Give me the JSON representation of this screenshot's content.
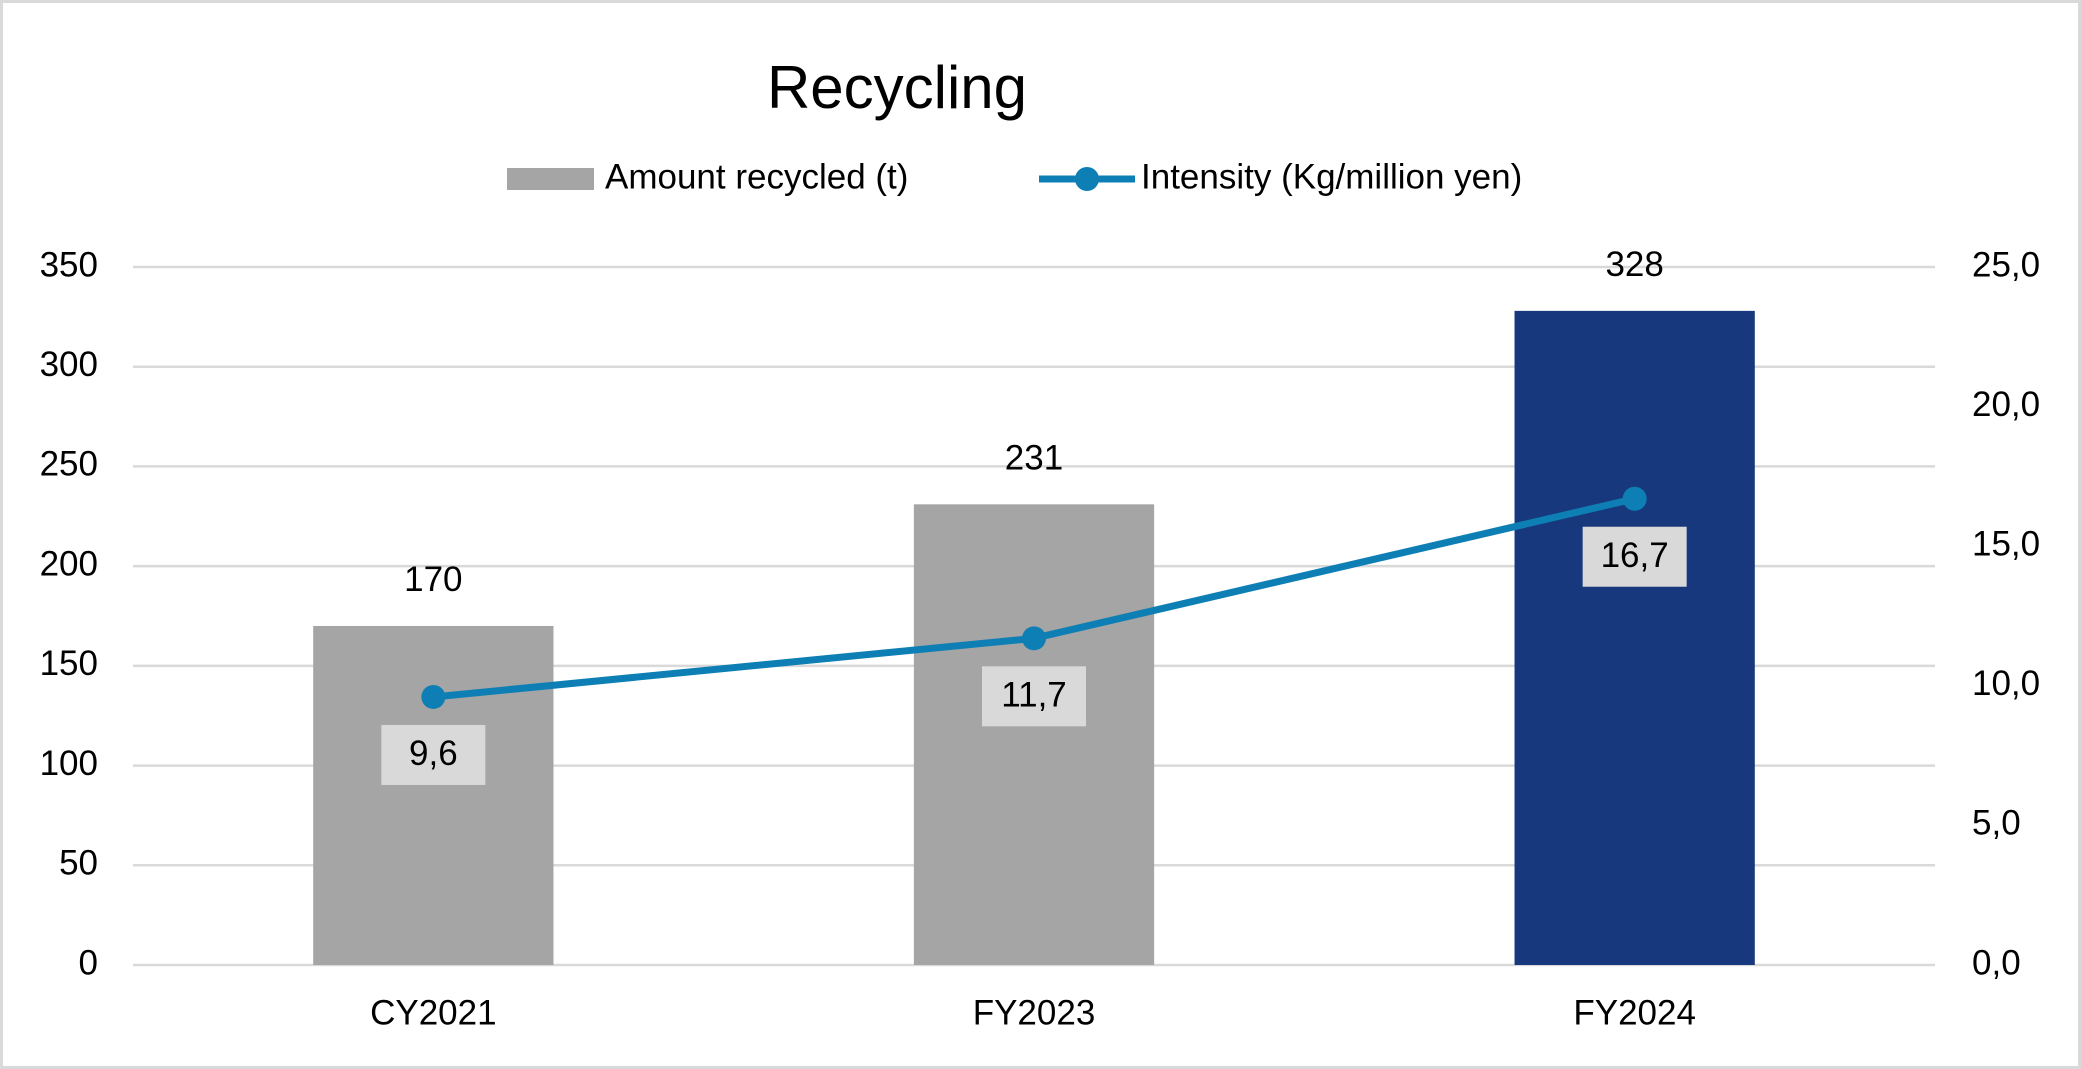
{
  "chart_data": {
    "type": "bar",
    "title": "Recycling",
    "categories": [
      "CY2021",
      "FY2023",
      "FY2024"
    ],
    "series": [
      {
        "name": "Amount recycled (t)",
        "type": "bar",
        "color": "#a5a5a5",
        "colors": [
          "#a5a5a5",
          "#a5a5a5",
          "#17387c"
        ],
        "values": [
          170,
          231,
          328
        ]
      },
      {
        "name": "Intensity (Kg/million yen)",
        "type": "line",
        "axis": "y2",
        "color": "#0e7fb4",
        "values": [
          9.6,
          11.7,
          16.7
        ],
        "value_labels": [
          "9,6",
          "11,7",
          "16,7"
        ]
      }
    ],
    "ylim": [
      0,
      350
    ],
    "yticks": [
      0,
      50,
      100,
      150,
      200,
      250,
      300,
      350
    ],
    "y2lim": [
      0,
      25
    ],
    "y2ticks": [
      {
        "value": 0,
        "label": "0,0"
      },
      {
        "value": 5,
        "label": "5,0"
      },
      {
        "value": 10,
        "label": "10,0"
      },
      {
        "value": 15,
        "label": "15,0"
      },
      {
        "value": 20,
        "label": "20,0"
      },
      {
        "value": 25,
        "label": "25,0"
      }
    ],
    "grid": true,
    "legend": "top"
  }
}
